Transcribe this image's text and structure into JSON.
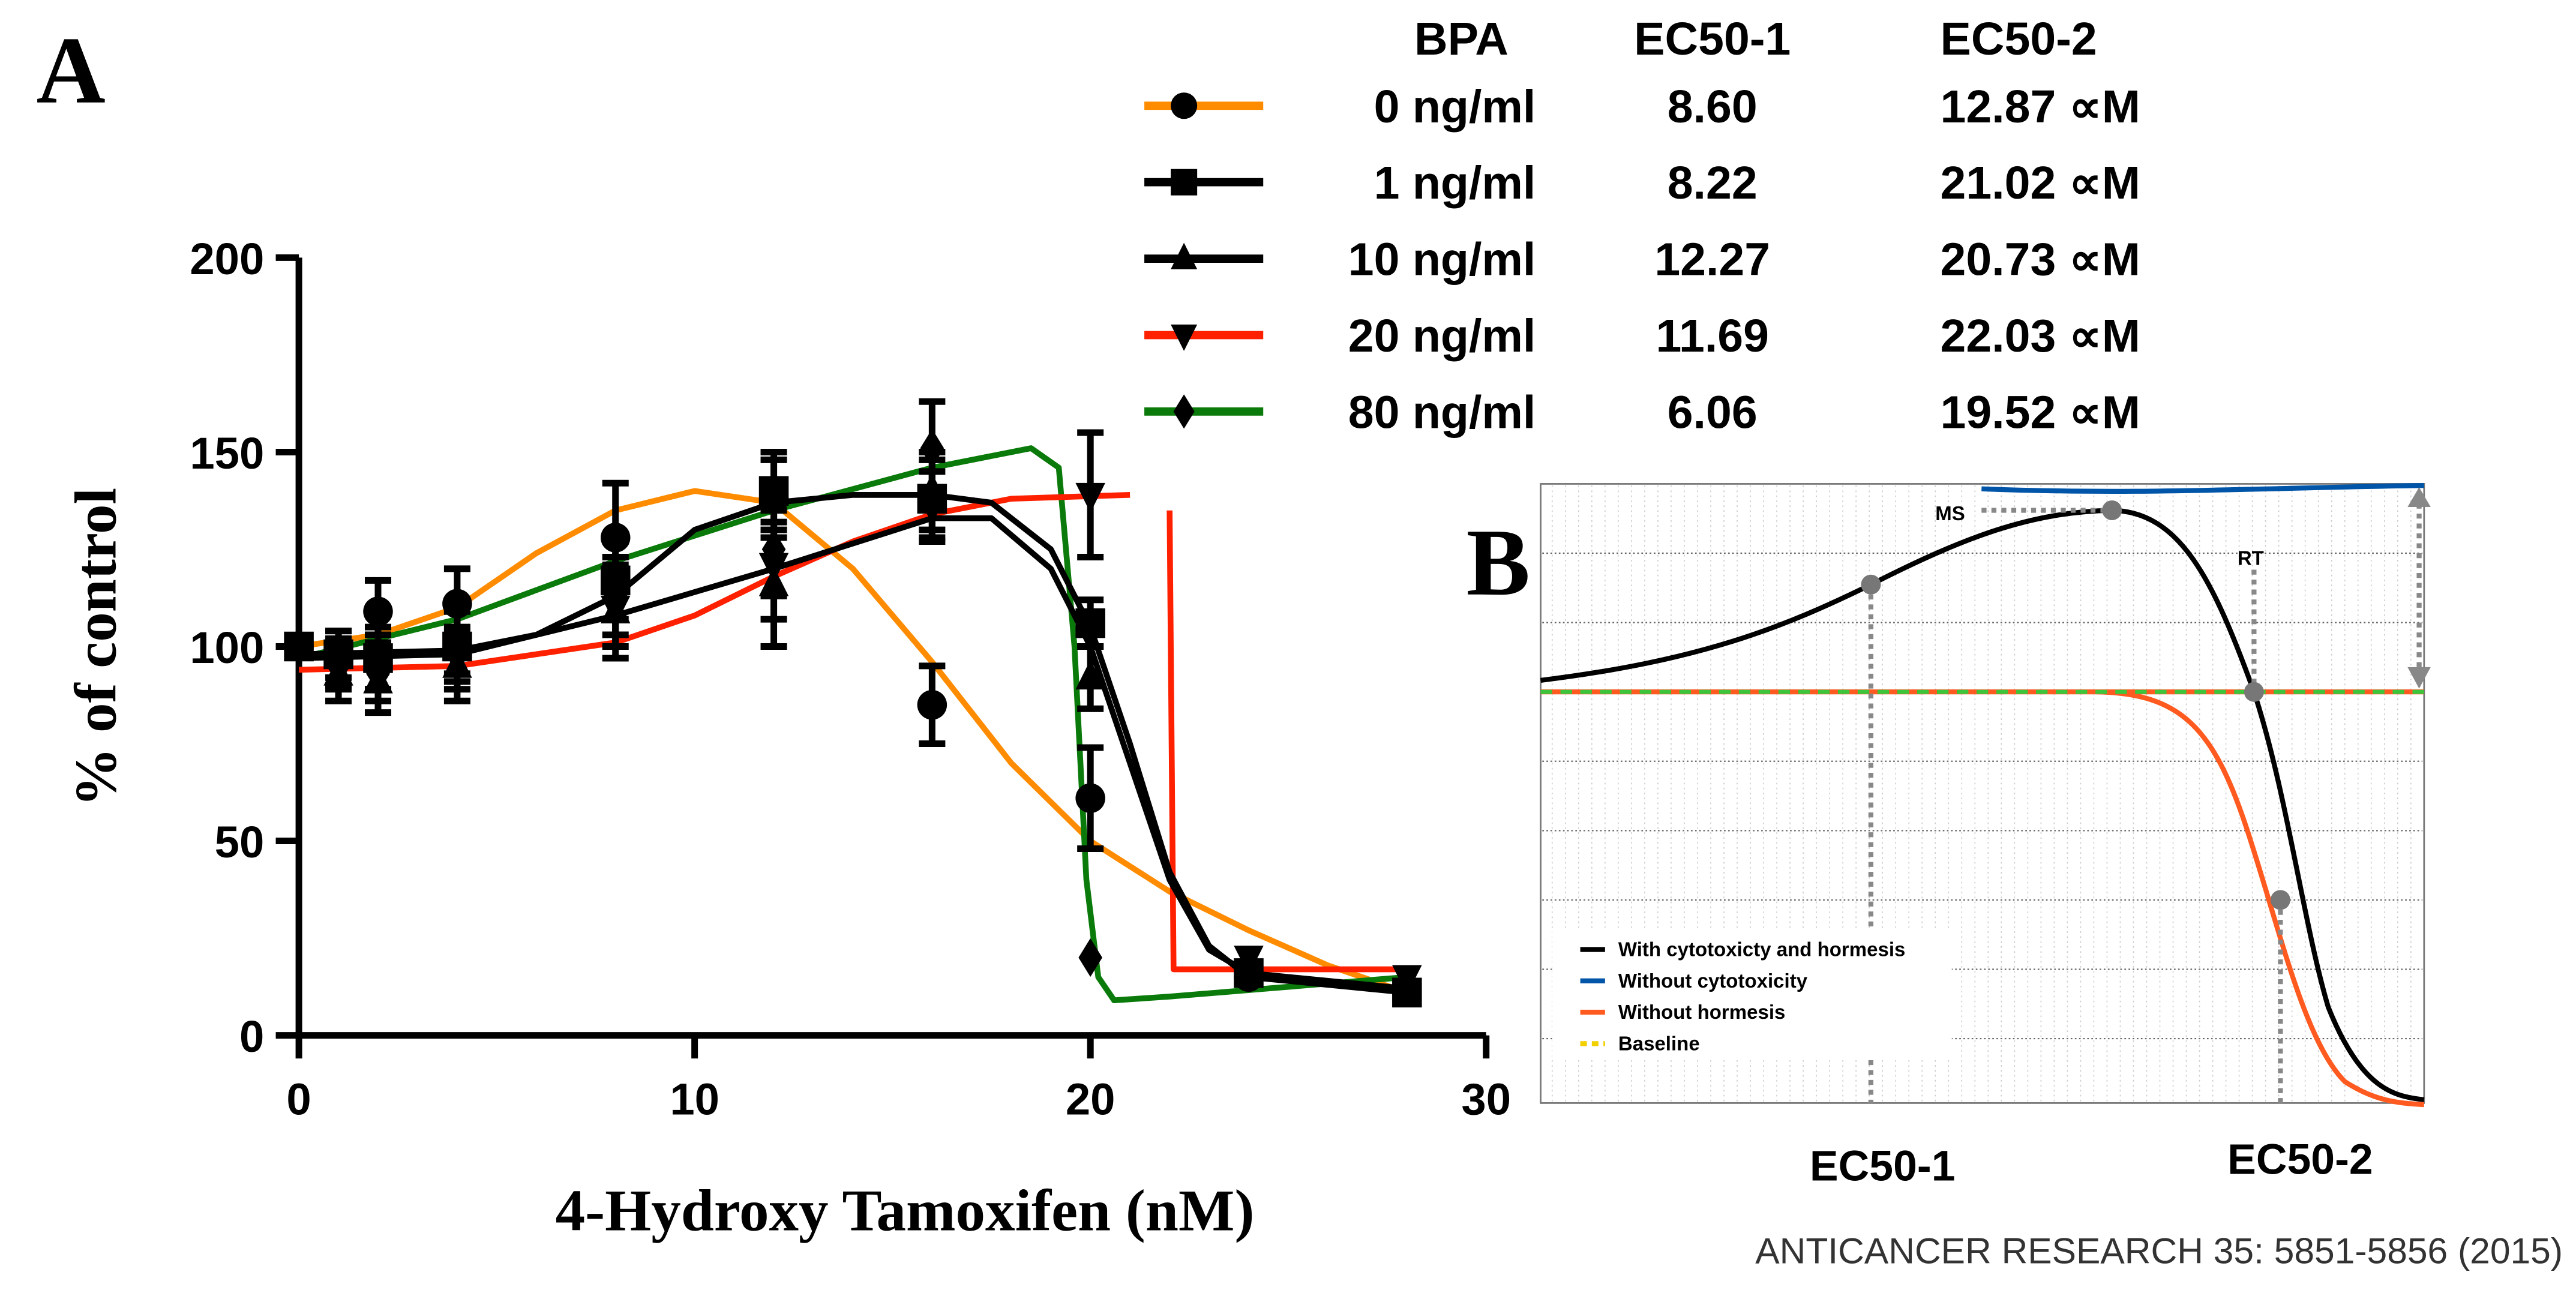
{
  "panel_labels": {
    "a": "A",
    "b": "B"
  },
  "chart_data": [
    {
      "type": "line",
      "title": "",
      "xlabel": "4-Hydroxy Tamoxifen (nM)",
      "ylabel": "% of control",
      "xlim": [
        0,
        30
      ],
      "ylim": [
        0,
        200
      ],
      "xticks": [
        "0",
        "10",
        "20",
        "30"
      ],
      "yticks": [
        "0",
        "50",
        "100",
        "150",
        "200"
      ],
      "x": [
        0,
        1,
        2,
        4,
        8,
        12,
        16,
        20,
        24,
        28
      ],
      "legend_position": "top-right",
      "legend_headers": [
        "BPA",
        "EC50-1",
        "EC50-2"
      ],
      "series": [
        {
          "name": "0 ng/ml",
          "ec50_1": "8.60",
          "ec50_2": "12.87 ∝M",
          "color": "#ff8c00",
          "marker": "circle",
          "values": [
            100,
            97,
            109,
            111,
            128,
            138,
            85,
            61,
            15,
            11
          ],
          "errors": [
            3,
            7,
            8,
            9,
            14,
            10,
            10,
            13,
            3,
            3
          ],
          "fit": [
            [
              0,
              100
            ],
            [
              2,
              103
            ],
            [
              4,
              110
            ],
            [
              6,
              124
            ],
            [
              8,
              135
            ],
            [
              10,
              140
            ],
            [
              12,
              137
            ],
            [
              14,
              120
            ],
            [
              16,
              96
            ],
            [
              18,
              70
            ],
            [
              20,
              50
            ],
            [
              22,
              37
            ],
            [
              24,
              27
            ],
            [
              26,
              18
            ],
            [
              28,
              11
            ]
          ]
        },
        {
          "name": "1 ng/ml",
          "ec50_1": "8.22",
          "ec50_2": "21.02 ∝M",
          "color": "#000000",
          "marker": "square",
          "values": [
            100,
            98,
            97,
            100,
            117,
            140,
            138,
            106,
            16,
            11
          ],
          "errors": [
            3,
            6,
            8,
            9,
            10,
            10,
            10,
            6,
            3,
            3
          ],
          "fit": [
            [
              0,
              98
            ],
            [
              4,
              99
            ],
            [
              6,
              103
            ],
            [
              8,
              113
            ],
            [
              10,
              130
            ],
            [
              12,
              137
            ],
            [
              14,
              139
            ],
            [
              16,
              139
            ],
            [
              17.5,
              137
            ],
            [
              19,
              125
            ],
            [
              20,
              105
            ],
            [
              21,
              75
            ],
            [
              22,
              42
            ],
            [
              23,
              23
            ],
            [
              24,
              15
            ],
            [
              28,
              11
            ]
          ]
        },
        {
          "name": "10 ng/ml",
          "ec50_1": "12.27",
          "ec50_2": "20.73 ∝M",
          "color": "#000000",
          "marker": "triangle-up",
          "values": [
            100,
            93,
            91,
            95,
            109,
            116,
            140,
            92,
            16,
            12
          ],
          "errors": [
            3,
            7,
            8,
            9,
            12,
            16,
            10,
            8,
            3,
            3
          ],
          "fit": [
            [
              0,
              97
            ],
            [
              4,
              98
            ],
            [
              8,
              108
            ],
            [
              12,
              120
            ],
            [
              16,
              133
            ],
            [
              17.5,
              133
            ],
            [
              19,
              120
            ],
            [
              20,
              100
            ],
            [
              21,
              70
            ],
            [
              22,
              40
            ],
            [
              23,
              22
            ],
            [
              24,
              16
            ],
            [
              28,
              12
            ]
          ]
        },
        {
          "name": "20 ng/ml",
          "ec50_1": "11.69",
          "ec50_2": "22.03 ∝M",
          "color": "#ff2000",
          "marker": "triangle-down",
          "values": [
            100,
            96,
            96,
            97,
            110,
            121,
            136,
            139,
            20,
            15
          ],
          "errors": [
            3,
            6,
            7,
            8,
            10,
            14,
            9,
            16,
            3,
            3
          ],
          "fit": [
            [
              0,
              94
            ],
            [
              4,
              95
            ],
            [
              8,
              101
            ],
            [
              10,
              108
            ],
            [
              12,
              118
            ],
            [
              14,
              127
            ],
            [
              16,
              134
            ],
            [
              18,
              138
            ],
            [
              21,
              139
            ],
            [
              null,
              null
            ],
            [
              22,
              135
            ],
            [
              22.1,
              17
            ],
            [
              28,
              17
            ]
          ]
        },
        {
          "name": "80 ng/ml",
          "ec50_1": "6.06",
          "ec50_2": "19.52 ∝M",
          "color": "#0a7a0a",
          "marker": "diamond",
          "values": [
            100,
            95,
            93,
            101,
            113,
            125,
            151,
            20,
            16,
            13
          ],
          "errors": [
            3,
            6,
            7,
            8,
            10,
            12,
            12,
            3,
            3,
            3
          ],
          "fit": [
            [
              0,
              97
            ],
            [
              4,
              107
            ],
            [
              8,
              122
            ],
            [
              12,
              135
            ],
            [
              16,
              146
            ],
            [
              18.5,
              151
            ],
            [
              19.2,
              146
            ],
            [
              19.6,
              100
            ],
            [
              19.9,
              40
            ],
            [
              20.2,
              15
            ],
            [
              20.6,
              9
            ],
            [
              22,
              10
            ],
            [
              28,
              15
            ]
          ]
        }
      ]
    },
    {
      "type": "line",
      "title": "",
      "xlabels": [
        "EC50-1",
        "EC50-2"
      ],
      "annotations": [
        "MS",
        "RT"
      ],
      "legend_position": "bottom-left",
      "legend": [
        {
          "name": "With cytotoxicty and hormesis",
          "color": "#000000"
        },
        {
          "name": "Without cytotoxicity",
          "color": "#0055a8"
        },
        {
          "name": "Without hormesis",
          "color": "#ff5a1f"
        },
        {
          "name": "Baseline",
          "color": "#f2d000"
        }
      ]
    }
  ],
  "citation": "ANTICANCER RESEARCH 35: 5851-5856 (2015)"
}
